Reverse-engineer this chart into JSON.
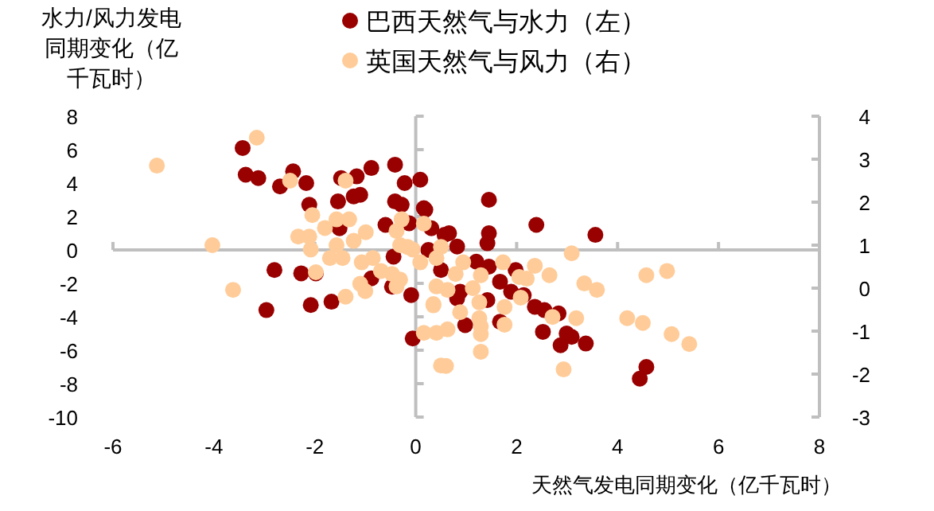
{
  "chart_data": {
    "type": "scatter",
    "xlabel": "天然气发电同期变化（亿千瓦时）",
    "ylabel": "水力/风力发电同期变化（亿千瓦时）",
    "legend": "top",
    "marker": "circle",
    "xlim": [
      -6,
      8
    ],
    "xticks": [
      -6,
      -4,
      -2,
      0,
      2,
      4,
      6,
      8
    ],
    "ylim": [
      -10,
      8
    ],
    "yticks": [
      -10,
      -8,
      -6,
      -4,
      -2,
      0,
      2,
      4,
      6,
      8
    ],
    "y2lim": [
      -3,
      4
    ],
    "y2ticks": [
      -3,
      -2,
      -1,
      0,
      1,
      2,
      3,
      4
    ],
    "series": [
      {
        "name": "巴西天然气与水力（左）",
        "color": "#990000",
        "x": [
          -3.43,
          -3.37,
          -3.12,
          -2.43,
          -2.69,
          -2.17,
          -1.48,
          -1.17,
          -0.88,
          -0.41,
          -0.22,
          0.09,
          -2.11,
          -1.54,
          -1.23,
          -1.1,
          -0.41,
          -0.28,
          0.16,
          -0.6,
          -1.51,
          -2.8,
          -2.27,
          -1.98,
          -2.96,
          -2.08,
          -1.67,
          -0.47,
          -0.09,
          -0.06,
          -0.44,
          -0.88,
          0.19,
          0.31,
          -0.13,
          0.66,
          0.57,
          0.82,
          0.25,
          1.2,
          0.5,
          1.45,
          1.45,
          1.42,
          2.39,
          3.56,
          1.45,
          1.67,
          1.89,
          2.14,
          1.42,
          0.88,
          0.82,
          1.67,
          2.36,
          2.55,
          2.83,
          2.52,
          2.87,
          2.99,
          3.09,
          3.37,
          0.98,
          4.57,
          4.44,
          1.98
        ],
        "values": [
          6.1,
          4.5,
          4.3,
          4.7,
          3.8,
          4.0,
          4.3,
          4.4,
          4.9,
          5.1,
          4.0,
          4.2,
          2.7,
          2.9,
          3.2,
          3.3,
          2.9,
          2.7,
          2.5,
          1.5,
          1.3,
          -1.2,
          -1.4,
          -1.4,
          -3.6,
          -3.3,
          -3.1,
          -2.2,
          -2.7,
          -5.3,
          -0.4,
          -1.7,
          2.4,
          1.3,
          1.6,
          1.0,
          0.9,
          0.2,
          0.0,
          -0.7,
          -1.2,
          3.0,
          1.0,
          0.4,
          1.5,
          0.9,
          -1.0,
          -1.9,
          -2.5,
          -2.7,
          -3.0,
          -2.5,
          -2.9,
          -4.3,
          -3.4,
          -3.6,
          -3.8,
          -4.9,
          -5.7,
          -5.0,
          -5.2,
          -5.6,
          -4.5,
          -7.0,
          -7.7,
          -1.2
        ]
      },
      {
        "name": "英国天然气与风力（右）",
        "color": "#ffcc99",
        "axis": "y2",
        "x": [
          -5.13,
          -3.15,
          -4.03,
          -3.62,
          -2.49,
          -2.05,
          -2.33,
          -2.11,
          -2.08,
          -1.8,
          -1.57,
          -1.32,
          -1.39,
          -0.99,
          -1.23,
          -1.57,
          -1.7,
          -1.45,
          -1.07,
          -0.85,
          -1.98,
          -1.1,
          -1.0,
          -1.39,
          -0.69,
          -0.47,
          -0.31,
          -0.38,
          -0.38,
          -0.28,
          -0.31,
          -0.06,
          0.16,
          0.35,
          0.16,
          0.41,
          0.5,
          -0.16,
          0.5,
          0.09,
          0.41,
          0.94,
          0.79,
          1.73,
          1.29,
          2.05,
          2.2,
          2.36,
          2.65,
          3.09,
          3.34,
          3.59,
          4.57,
          4.98,
          0.41,
          0.63,
          1.13,
          0.35,
          1.26,
          1.76,
          2.08,
          0.88,
          2.71,
          3.18,
          4.19,
          4.5,
          1.26,
          1.29,
          1.76,
          0.63,
          1.29,
          1.29,
          0.6,
          2.93,
          5.07,
          5.42
        ],
        "values": [
          2.85,
          3.5,
          1.0,
          -0.04,
          2.5,
          1.7,
          1.2,
          1.2,
          0.9,
          1.4,
          1.6,
          1.6,
          2.5,
          1.3,
          1.1,
          1.0,
          0.7,
          0.7,
          0.6,
          0.7,
          0.37,
          0.1,
          -0.07,
          -0.2,
          0.4,
          0.33,
          0.2,
          0.04,
          1.33,
          1.6,
          1.0,
          0.9,
          1.5,
          -0.4,
          -1.04,
          -1.04,
          -1.8,
          0.96,
          0.96,
          0.6,
          0.7,
          0.6,
          0.33,
          0.6,
          0.3,
          0.26,
          0.22,
          0.52,
          0.3,
          0.81,
          0.11,
          -0.04,
          0.3,
          0.4,
          0.04,
          -0.04,
          0.0,
          -0.37,
          -0.33,
          -0.44,
          -0.22,
          -0.56,
          -0.67,
          -0.7,
          -0.7,
          -0.81,
          -0.7,
          -0.89,
          -0.85,
          -0.96,
          -1.07,
          -1.48,
          -1.81,
          -1.89,
          -1.07,
          -1.3
        ]
      }
    ]
  }
}
